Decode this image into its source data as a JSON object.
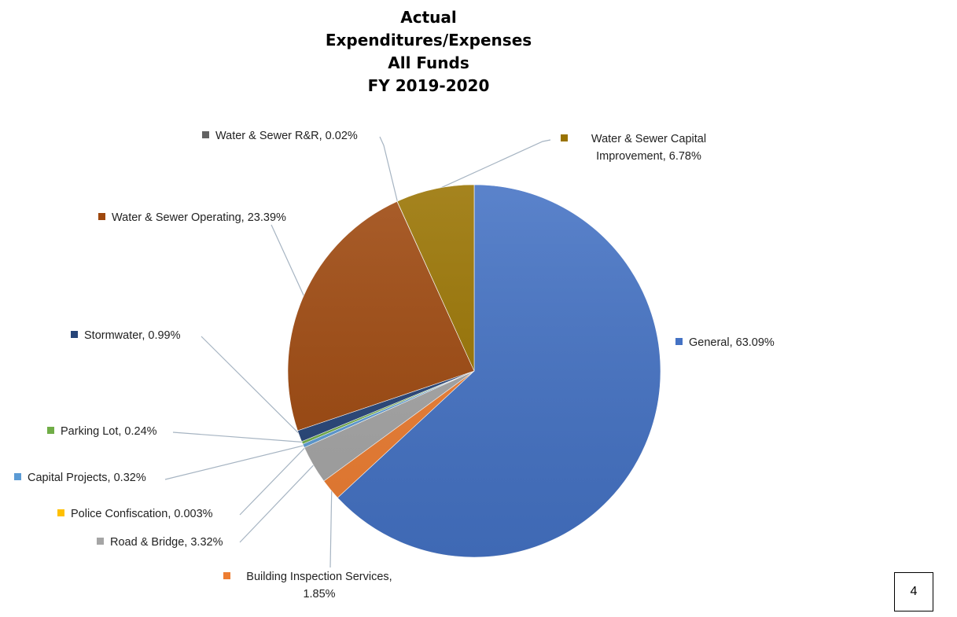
{
  "title_lines": [
    "Actual",
    "Expenditures/Expenses",
    "All Funds",
    "FY 2019-2020"
  ],
  "page_number": "4",
  "chart_data": {
    "type": "pie",
    "title": "Actual Expenditures/Expenses All Funds FY 2019-2020",
    "legend": "data labels with callout lines",
    "slices": [
      {
        "name": "General",
        "value": 63.09,
        "label": "General, 63.09%",
        "color": "#4472C4"
      },
      {
        "name": "Building Inspection Services",
        "value": 1.85,
        "label": "Building Inspection Services, 1.85%",
        "color": "#ED7D31"
      },
      {
        "name": "Road & Bridge",
        "value": 3.32,
        "label": "Road & Bridge, 3.32%",
        "color": "#A5A5A5"
      },
      {
        "name": "Police Confiscation",
        "value": 0.003,
        "label": "Police Confiscation, 0.003%",
        "color": "#FFC000"
      },
      {
        "name": "Capital Projects",
        "value": 0.32,
        "label": "Capital Projects, 0.32%",
        "color": "#5B9BD5"
      },
      {
        "name": "Parking Lot",
        "value": 0.24,
        "label": "Parking Lot, 0.24%",
        "color": "#70AD47"
      },
      {
        "name": "Stormwater",
        "value": 0.99,
        "label": "Stormwater, 0.99%",
        "color": "#264478"
      },
      {
        "name": "Water & Sewer Operating",
        "value": 23.39,
        "label": "Water & Sewer Operating, 23.39%",
        "color": "#9E480E"
      },
      {
        "name": "Water & Sewer R&R",
        "value": 0.02,
        "label": "Water & Sewer R&R, 0.02%",
        "color": "#636363"
      },
      {
        "name": "Water & Sewer Capital Improvement",
        "value": 6.78,
        "label": "Water & Sewer Capital Improvement, 6.78%",
        "color": "#997300"
      }
    ]
  }
}
